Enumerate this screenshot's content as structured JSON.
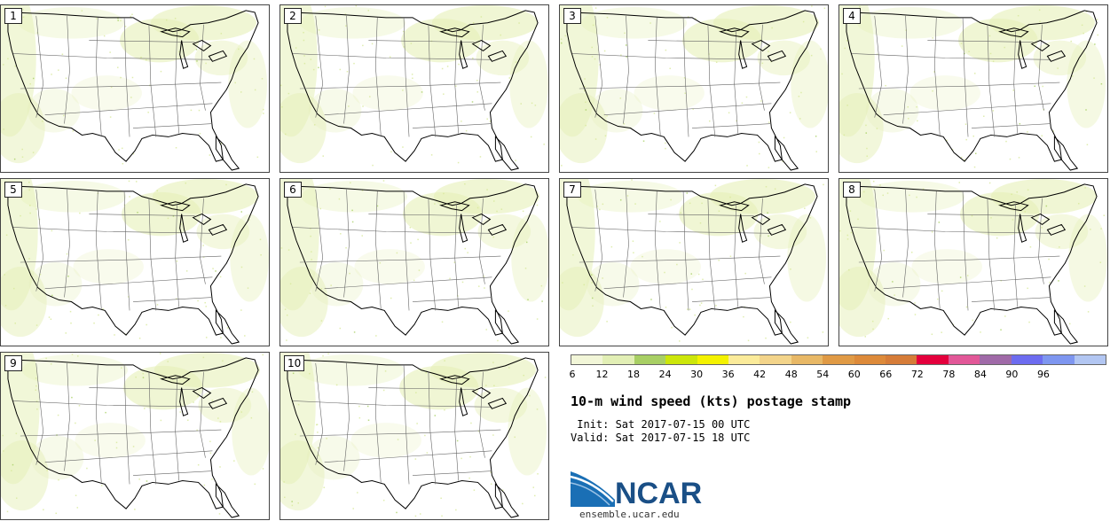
{
  "panels": [
    "1",
    "2",
    "3",
    "4",
    "5",
    "6",
    "7",
    "8",
    "9",
    "10"
  ],
  "colorbar": {
    "ticks": [
      "6",
      "12",
      "18",
      "24",
      "30",
      "36",
      "42",
      "48",
      "54",
      "60",
      "66",
      "72",
      "78",
      "84",
      "90",
      "96"
    ],
    "colors": [
      "#f2f6d8",
      "#e2efb5",
      "#a8cf64",
      "#cce60a",
      "#f4f200",
      "#fbeb9a",
      "#f3d48a",
      "#e8b866",
      "#e09a45",
      "#dd8a3a",
      "#d67c38",
      "#e4003c",
      "#e25898",
      "#a06aa8",
      "#6d6cf0",
      "#7e96f0",
      "#b2c6f2"
    ]
  },
  "title": "10-m wind speed (kts) postage stamp",
  "init": " Init: Sat 2017-07-15 00 UTC",
  "valid": "Valid: Sat 2017-07-15 18 UTC",
  "logo": {
    "name": "NCAR",
    "url": "ensemble.ucar.edu"
  }
}
